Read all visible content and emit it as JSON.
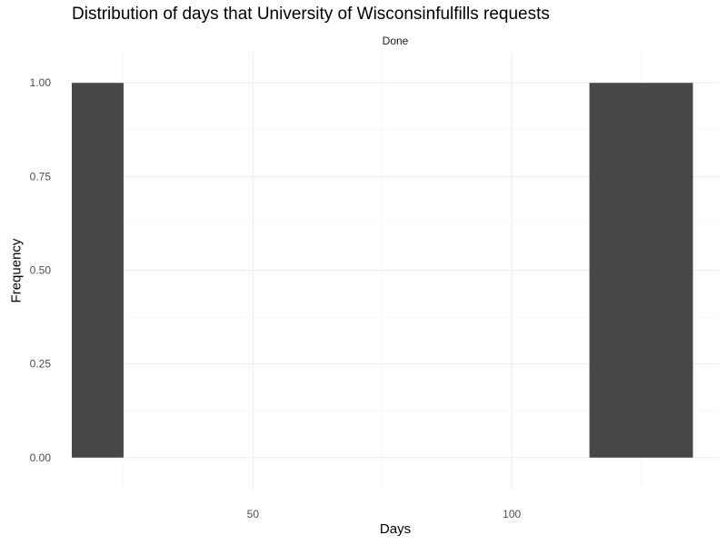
{
  "chart_data": {
    "type": "bar",
    "title": "Distribution of days that University of Wisconsinfulfills requests",
    "facet_label": "Done",
    "xlabel": "Days",
    "ylabel": "Frequency",
    "xlim": [
      15,
      140
    ],
    "ylim": [
      -0.083,
      1.083
    ],
    "x_major_ticks": [
      50,
      100
    ],
    "x_minor_ticks": [
      25,
      75,
      125
    ],
    "y_major_ticks": [
      0.0,
      0.25,
      0.5,
      0.75,
      1.0
    ],
    "y_minor_ticks": [
      0.125,
      0.375,
      0.625,
      0.875
    ],
    "y_tick_labels": [
      "0.00",
      "0.25",
      "0.50",
      "0.75",
      "1.00"
    ],
    "x_tick_labels": [
      "50",
      "100"
    ],
    "grid": true,
    "bars": [
      {
        "x_start": 15,
        "x_end": 25,
        "value": 1
      },
      {
        "x_start": 115,
        "x_end": 135,
        "value": 1
      }
    ],
    "colors": {
      "bar": "#474747",
      "grid_major": "#ebebeb",
      "grid_minor": "#f5f5f5"
    }
  }
}
